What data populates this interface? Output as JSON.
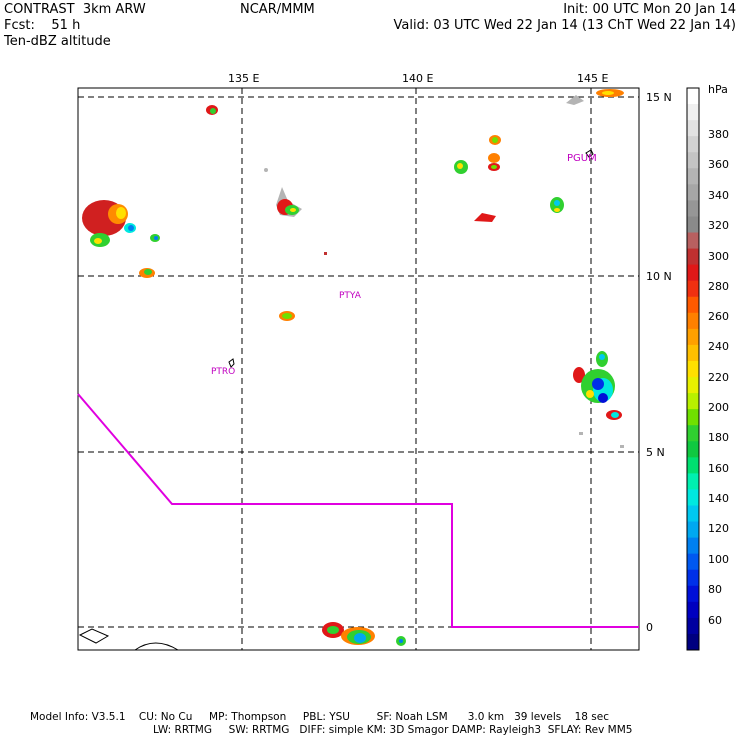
{
  "header": {
    "model": "CONTRAST  3km ARW",
    "forecast": "Fcst:    51 h",
    "field": "Ten-dBZ altitude",
    "org": "NCAR/MMM",
    "init": "Init: 00 UTC Mon 20 Jan 14",
    "valid": "Valid: 03 UTC Wed 22 Jan 14 (13 ChT Wed 22 Jan 14)"
  },
  "map": {
    "lon_labels": [
      "135 E",
      "140 E",
      "145 E"
    ],
    "lat_labels": [
      "15 N",
      "10 N",
      "5 N",
      "0"
    ],
    "stations": [
      "PGUM",
      "PTYA",
      "PTRO"
    ],
    "boundary_color": "#e000e0"
  },
  "colorbar": {
    "unit": "hPa",
    "labels": [
      "380",
      "360",
      "340",
      "320",
      "300",
      "280",
      "260",
      "240",
      "220",
      "200",
      "180",
      "160",
      "140",
      "120",
      "100",
      "80",
      "60"
    ],
    "colors": [
      "#ffffff",
      "#f0f0f0",
      "#e2e2e2",
      "#d2d2d2",
      "#c4c4c4",
      "#b4b4b4",
      "#a6a6a6",
      "#969696",
      "#8a8a8a",
      "#b86060",
      "#c03030",
      "#e01818",
      "#f03010",
      "#ff5a00",
      "#ff8000",
      "#ffa000",
      "#ffc000",
      "#ffe000",
      "#e8f000",
      "#b8f000",
      "#70e000",
      "#30d030",
      "#10c840",
      "#00e070",
      "#00f0b0",
      "#00e8e0",
      "#00c8f0",
      "#00a8f0",
      "#0080f0",
      "#0058f0",
      "#0030e8",
      "#0010d8",
      "#0000c0",
      "#0000a0",
      "#000080"
    ]
  },
  "footer": {
    "line1": "Model Info: V3.5.1    CU: No Cu     MP: Thompson     PBL: YSU        SF: Noah LSM      3.0 km   39 levels    18 sec",
    "line2": "LW: RRTMG     SW: RRTMG   DIFF: simple KM: 3D Smagor DAMP: Rayleigh3  SFLAY: Rev MM5"
  }
}
